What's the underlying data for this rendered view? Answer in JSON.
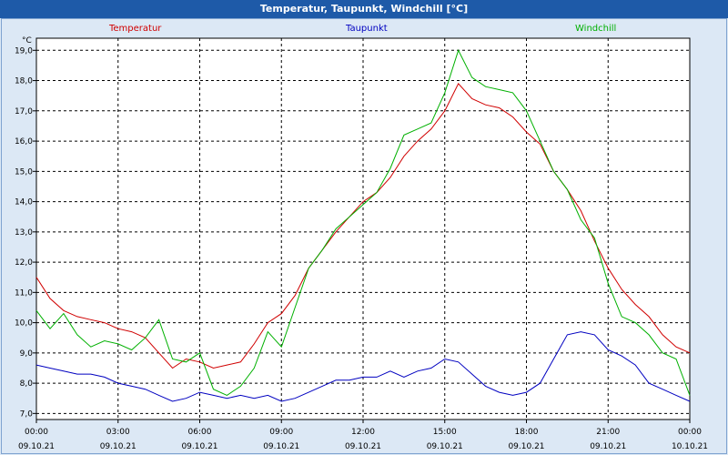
{
  "window": {
    "title": "Temperatur, Taupunkt, Windchill [°C]"
  },
  "chart_data": {
    "type": "line",
    "title": "Temperatur, Taupunkt, Windchill [°C]",
    "ylabel": "°C",
    "ylim": [
      6.8,
      19.4
    ],
    "y_ticks": [
      7.0,
      8.0,
      9.0,
      10.0,
      11.0,
      12.0,
      13.0,
      14.0,
      15.0,
      16.0,
      17.0,
      18.0,
      19.0
    ],
    "y_tick_labels": [
      "7,0",
      "8,0",
      "9,0",
      "10,0",
      "11,0",
      "12,0",
      "13,0",
      "14,0",
      "15,0",
      "16,0",
      "17,0",
      "18,0",
      "19,0"
    ],
    "xlim": [
      0,
      24
    ],
    "x_ticks": [
      0,
      3,
      6,
      9,
      12,
      15,
      18,
      21,
      24
    ],
    "x_tick_labels": [
      [
        "00:00",
        "09.10.21"
      ],
      [
        "03:00",
        "09.10.21"
      ],
      [
        "06:00",
        "09.10.21"
      ],
      [
        "09:00",
        "09.10.21"
      ],
      [
        "12:00",
        "09.10.21"
      ],
      [
        "15:00",
        "09.10.21"
      ],
      [
        "18:00",
        "09.10.21"
      ],
      [
        "21:00",
        "09.10.21"
      ],
      [
        "00:00",
        "10.10.21"
      ]
    ],
    "grid": true,
    "legend": "top",
    "series": [
      {
        "name": "Temperatur",
        "color": "#d00000",
        "x": [
          0,
          0.5,
          1,
          1.5,
          2,
          2.5,
          3,
          3.5,
          4,
          4.5,
          5,
          5.5,
          6,
          6.5,
          7,
          7.5,
          8,
          8.5,
          9,
          9.5,
          10,
          10.5,
          11,
          11.5,
          12,
          12.5,
          13,
          13.5,
          14,
          14.5,
          15,
          15.5,
          16,
          16.5,
          17,
          17.5,
          18,
          18.5,
          19,
          19.5,
          20,
          20.5,
          21,
          21.5,
          22,
          22.5,
          23,
          23.5,
          24
        ],
        "values": [
          11.5,
          10.8,
          10.4,
          10.2,
          10.1,
          10.0,
          9.8,
          9.7,
          9.5,
          9.0,
          8.5,
          8.8,
          8.7,
          8.5,
          8.6,
          8.7,
          9.3,
          10.0,
          10.3,
          10.9,
          11.8,
          12.4,
          13.0,
          13.5,
          14.0,
          14.3,
          14.8,
          15.5,
          16.0,
          16.4,
          17.0,
          17.9,
          17.4,
          17.2,
          17.1,
          16.8,
          16.3,
          15.9,
          15.0,
          14.4,
          13.7,
          12.7,
          11.8,
          11.1,
          10.6,
          10.2,
          9.6,
          9.2,
          9.0
        ]
      },
      {
        "name": "Taupunkt",
        "color": "#0000c0",
        "x": [
          0,
          0.5,
          1,
          1.5,
          2,
          2.5,
          3,
          3.5,
          4,
          4.5,
          5,
          5.5,
          6,
          6.5,
          7,
          7.5,
          8,
          8.5,
          9,
          9.5,
          10,
          10.5,
          11,
          11.5,
          12,
          12.5,
          13,
          13.5,
          14,
          14.5,
          15,
          15.5,
          16,
          16.5,
          17,
          17.5,
          18,
          18.5,
          19,
          19.5,
          20,
          20.5,
          21,
          21.5,
          22,
          22.5,
          23,
          23.5,
          24
        ],
        "values": [
          8.6,
          8.5,
          8.4,
          8.3,
          8.3,
          8.2,
          8.0,
          7.9,
          7.8,
          7.6,
          7.4,
          7.5,
          7.7,
          7.6,
          7.5,
          7.6,
          7.5,
          7.6,
          7.4,
          7.5,
          7.7,
          7.9,
          8.1,
          8.1,
          8.2,
          8.2,
          8.4,
          8.2,
          8.4,
          8.5,
          8.8,
          8.7,
          8.3,
          7.9,
          7.7,
          7.6,
          7.7,
          8.0,
          8.8,
          9.6,
          9.7,
          9.6,
          9.1,
          8.9,
          8.6,
          8.0,
          7.8,
          7.6,
          7.4
        ]
      },
      {
        "name": "Windchill",
        "color": "#00b000",
        "x": [
          0,
          0.5,
          1,
          1.5,
          2,
          2.5,
          3,
          3.5,
          4,
          4.5,
          5,
          5.5,
          6,
          6.5,
          7,
          7.5,
          8,
          8.5,
          9,
          9.5,
          10,
          10.5,
          11,
          11.5,
          12,
          12.5,
          13,
          13.5,
          14,
          14.5,
          15,
          15.5,
          16,
          16.5,
          17,
          17.5,
          18,
          18.5,
          19,
          19.5,
          20,
          20.5,
          21,
          21.5,
          22,
          22.5,
          23,
          23.5,
          24
        ],
        "values": [
          10.4,
          9.8,
          10.3,
          9.6,
          9.2,
          9.4,
          9.3,
          9.1,
          9.5,
          10.1,
          8.8,
          8.7,
          9.0,
          7.8,
          7.6,
          7.9,
          8.5,
          9.7,
          9.2,
          10.5,
          11.8,
          12.4,
          13.1,
          13.5,
          13.9,
          14.3,
          15.1,
          16.2,
          16.4,
          16.6,
          17.6,
          19.0,
          18.1,
          17.8,
          17.7,
          17.6,
          17.0,
          16.0,
          15.0,
          14.4,
          13.4,
          12.8,
          11.3,
          10.2,
          10.0,
          9.6,
          9.0,
          8.8,
          7.6
        ]
      }
    ]
  }
}
